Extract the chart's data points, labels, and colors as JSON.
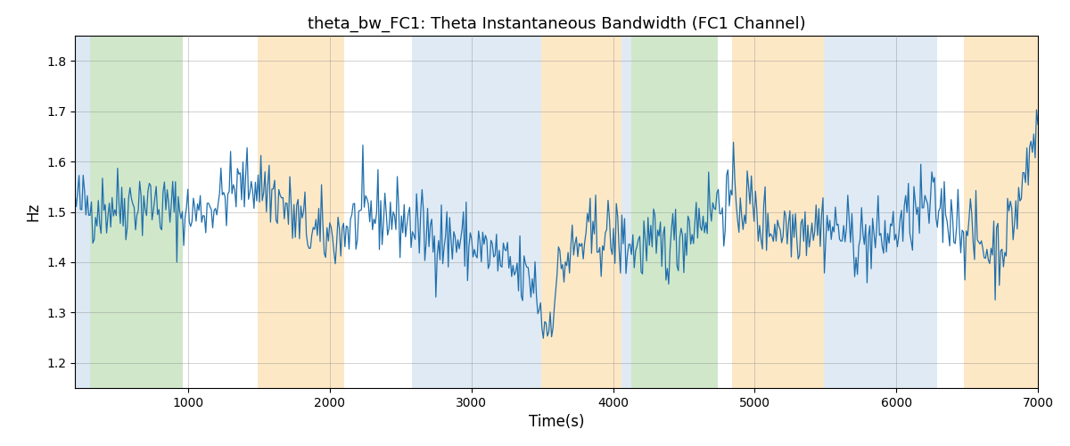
{
  "title": "theta_bw_FC1: Theta Instantaneous Bandwidth (FC1 Channel)",
  "xlabel": "Time(s)",
  "ylabel": "Hz",
  "xlim": [
    200,
    7000
  ],
  "ylim": [
    1.15,
    1.85
  ],
  "line_color": "#1f6fad",
  "line_width": 0.9,
  "bg_bands": [
    {
      "xmin": 200,
      "xmax": 310,
      "color": "#c6d9ec",
      "alpha": 0.6
    },
    {
      "xmin": 310,
      "xmax": 960,
      "color": "#b2d8a8",
      "alpha": 0.6
    },
    {
      "xmin": 1490,
      "xmax": 2100,
      "color": "#fdd9a0",
      "alpha": 0.6
    },
    {
      "xmin": 2580,
      "xmax": 3490,
      "color": "#c6d9ec",
      "alpha": 0.55
    },
    {
      "xmin": 3490,
      "xmax": 4060,
      "color": "#fdd9a0",
      "alpha": 0.6
    },
    {
      "xmin": 4060,
      "xmax": 4130,
      "color": "#c6d9ec",
      "alpha": 0.55
    },
    {
      "xmin": 4130,
      "xmax": 4740,
      "color": "#b2d8a8",
      "alpha": 0.6
    },
    {
      "xmin": 4840,
      "xmax": 5490,
      "color": "#fdd9a0",
      "alpha": 0.6
    },
    {
      "xmin": 5490,
      "xmax": 6290,
      "color": "#c6d9ec",
      "alpha": 0.55
    },
    {
      "xmin": 6480,
      "xmax": 7000,
      "color": "#fdd9a0",
      "alpha": 0.6
    }
  ],
  "xticks": [
    1000,
    2000,
    3000,
    4000,
    5000,
    6000,
    7000
  ],
  "yticks": [
    1.2,
    1.3,
    1.4,
    1.5,
    1.6,
    1.7,
    1.8
  ],
  "title_fontsize": 13,
  "label_fontsize": 12,
  "seed": 42,
  "n_points": 700
}
